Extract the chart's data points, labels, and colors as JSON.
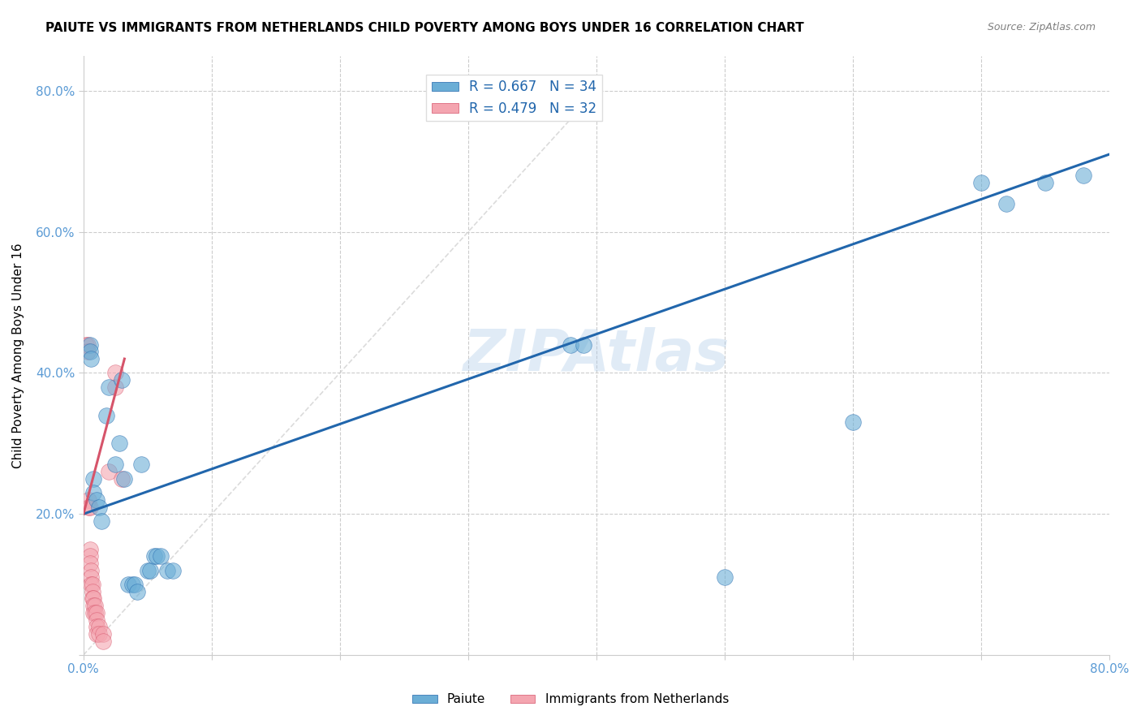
{
  "title": "PAIUTE VS IMMIGRANTS FROM NETHERLANDS CHILD POVERTY AMONG BOYS UNDER 16 CORRELATION CHART",
  "source": "Source: ZipAtlas.com",
  "xlabel": "",
  "ylabel": "Child Poverty Among Boys Under 16",
  "watermark": "ZIPAtlas",
  "xlim": [
    0.0,
    0.8
  ],
  "ylim": [
    0.0,
    0.85
  ],
  "xticks": [
    0.0,
    0.1,
    0.2,
    0.3,
    0.4,
    0.5,
    0.6,
    0.7,
    0.8
  ],
  "yticks": [
    0.0,
    0.2,
    0.4,
    0.6,
    0.8
  ],
  "xticklabels": [
    "0.0%",
    "",
    "",
    "",
    "",
    "",
    "",
    "",
    "80.0%"
  ],
  "yticklabels": [
    "",
    "20.0%",
    "40.0%",
    "60.0%",
    "80.0%"
  ],
  "legend_labels": [
    "R = 0.667   N = 34",
    "R = 0.479   N = 32"
  ],
  "legend_series": [
    "Paiute",
    "Immigrants from Netherlands"
  ],
  "paiute_color": "#6baed6",
  "netherlands_color": "#f4a5b0",
  "blue_line_color": "#2166ac",
  "pink_line_color": "#d6546a",
  "grid_color": "#cccccc",
  "paiute_scatter": [
    [
      0.005,
      0.44
    ],
    [
      0.005,
      0.43
    ],
    [
      0.006,
      0.42
    ],
    [
      0.008,
      0.25
    ],
    [
      0.008,
      0.23
    ],
    [
      0.01,
      0.22
    ],
    [
      0.012,
      0.21
    ],
    [
      0.014,
      0.19
    ],
    [
      0.018,
      0.34
    ],
    [
      0.02,
      0.38
    ],
    [
      0.025,
      0.27
    ],
    [
      0.028,
      0.3
    ],
    [
      0.03,
      0.39
    ],
    [
      0.032,
      0.25
    ],
    [
      0.035,
      0.1
    ],
    [
      0.038,
      0.1
    ],
    [
      0.04,
      0.1
    ],
    [
      0.042,
      0.09
    ],
    [
      0.045,
      0.27
    ],
    [
      0.05,
      0.12
    ],
    [
      0.052,
      0.12
    ],
    [
      0.055,
      0.14
    ],
    [
      0.057,
      0.14
    ],
    [
      0.06,
      0.14
    ],
    [
      0.065,
      0.12
    ],
    [
      0.07,
      0.12
    ],
    [
      0.38,
      0.44
    ],
    [
      0.39,
      0.44
    ],
    [
      0.5,
      0.11
    ],
    [
      0.6,
      0.33
    ],
    [
      0.7,
      0.67
    ],
    [
      0.72,
      0.64
    ],
    [
      0.75,
      0.67
    ],
    [
      0.78,
      0.68
    ]
  ],
  "netherlands_scatter": [
    [
      0.002,
      0.44
    ],
    [
      0.003,
      0.44
    ],
    [
      0.003,
      0.43
    ],
    [
      0.004,
      0.22
    ],
    [
      0.004,
      0.21
    ],
    [
      0.005,
      0.21
    ],
    [
      0.005,
      0.15
    ],
    [
      0.005,
      0.14
    ],
    [
      0.005,
      0.13
    ],
    [
      0.006,
      0.12
    ],
    [
      0.006,
      0.11
    ],
    [
      0.006,
      0.1
    ],
    [
      0.007,
      0.1
    ],
    [
      0.007,
      0.09
    ],
    [
      0.007,
      0.08
    ],
    [
      0.008,
      0.08
    ],
    [
      0.008,
      0.07
    ],
    [
      0.008,
      0.06
    ],
    [
      0.009,
      0.07
    ],
    [
      0.009,
      0.06
    ],
    [
      0.01,
      0.06
    ],
    [
      0.01,
      0.05
    ],
    [
      0.01,
      0.04
    ],
    [
      0.01,
      0.03
    ],
    [
      0.012,
      0.04
    ],
    [
      0.012,
      0.03
    ],
    [
      0.015,
      0.03
    ],
    [
      0.015,
      0.02
    ],
    [
      0.02,
      0.26
    ],
    [
      0.025,
      0.38
    ],
    [
      0.025,
      0.4
    ],
    [
      0.03,
      0.25
    ]
  ],
  "blue_line_x": [
    0.0,
    0.8
  ],
  "blue_line_y": [
    0.2,
    0.71
  ],
  "pink_line_x": [
    0.0,
    0.032
  ],
  "pink_line_y": [
    0.2,
    0.42
  ],
  "dashed_line_x": [
    0.0,
    0.4
  ],
  "dashed_line_y": [
    0.0,
    0.8
  ]
}
